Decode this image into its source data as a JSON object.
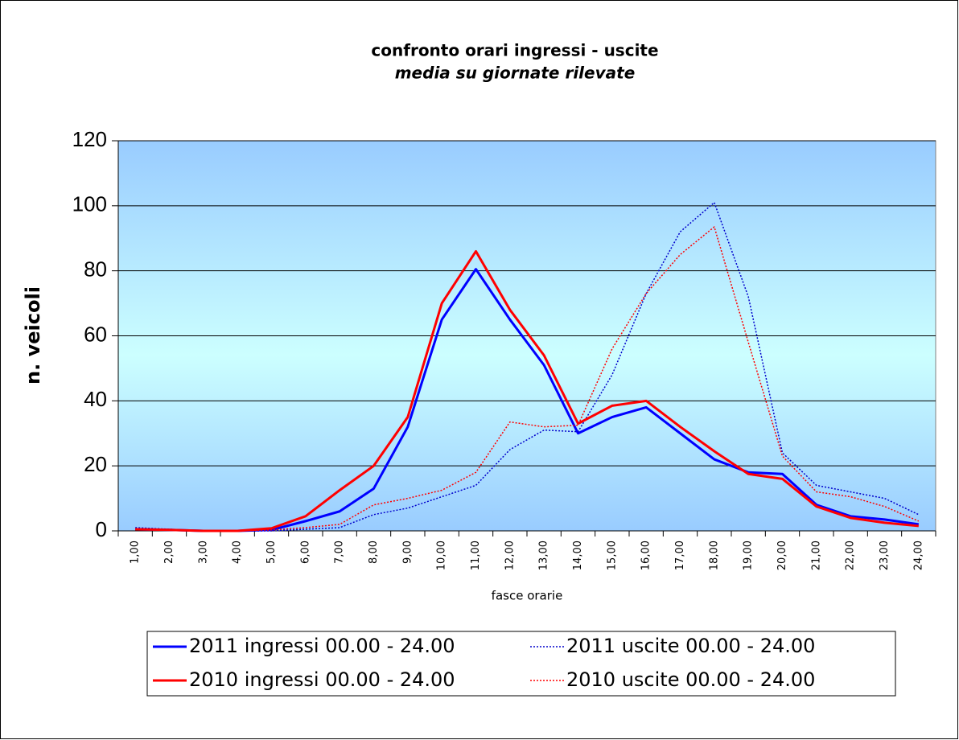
{
  "chart_data": {
    "type": "line",
    "title": "confronto orari ingressi - uscite",
    "subtitle": "media su giornate rilevate",
    "y_label": "n. veicoli",
    "x_label": "fasce orarie",
    "categories": [
      "1,00",
      "2,00",
      "3,00",
      "4,00",
      "5,00",
      "6,00",
      "7,00",
      "8,00",
      "9,00",
      "10,00",
      "11,00",
      "12,00",
      "13,00",
      "14,00",
      "15,00",
      "16,00",
      "17,00",
      "18,00",
      "19,00",
      "20,00",
      "21,00",
      "22,00",
      "23,00",
      "24,00"
    ],
    "ylim": [
      0,
      120
    ],
    "yticks": [
      0,
      20,
      40,
      60,
      80,
      100,
      120
    ],
    "grid": true,
    "series": [
      {
        "name": "2011 ingressi 00.00 - 24.00",
        "color": "#0000ff",
        "line_style": "solid",
        "values": [
          0.5,
          0.3,
          0,
          0,
          0.3,
          3,
          6,
          13,
          32,
          65,
          80.5,
          65,
          51,
          30,
          35,
          38,
          30,
          22,
          18,
          17.5,
          8,
          4.5,
          3.5,
          2
        ]
      },
      {
        "name": "2011 uscite 00.00 - 24.00",
        "color": "#0000cc",
        "line_style": "dotted",
        "values": [
          1,
          0.5,
          0,
          0,
          0,
          0.5,
          1,
          5,
          7,
          10.5,
          14,
          25,
          31,
          30.5,
          48,
          73,
          92,
          101,
          72,
          24,
          14,
          12,
          10,
          5
        ]
      },
      {
        "name": "2010 ingressi 00.00 - 24.00",
        "color": "#ff0000",
        "line_style": "solid",
        "values": [
          0.5,
          0.3,
          0,
          0,
          0.8,
          4.5,
          12.5,
          20,
          35,
          70,
          86,
          68,
          54,
          33,
          38.5,
          40,
          32,
          24.5,
          17.5,
          16,
          7.5,
          4,
          2.5,
          1.5
        ]
      },
      {
        "name": "2010 uscite 00.00 - 24.00",
        "color": "#ff0000",
        "line_style": "dotted",
        "values": [
          0.5,
          0.3,
          0,
          0,
          0.3,
          1,
          2,
          8,
          10,
          12.5,
          18,
          33.5,
          32,
          32.5,
          56,
          73,
          85,
          93.5,
          58,
          23,
          12,
          10.5,
          7.5,
          3
        ]
      }
    ]
  }
}
